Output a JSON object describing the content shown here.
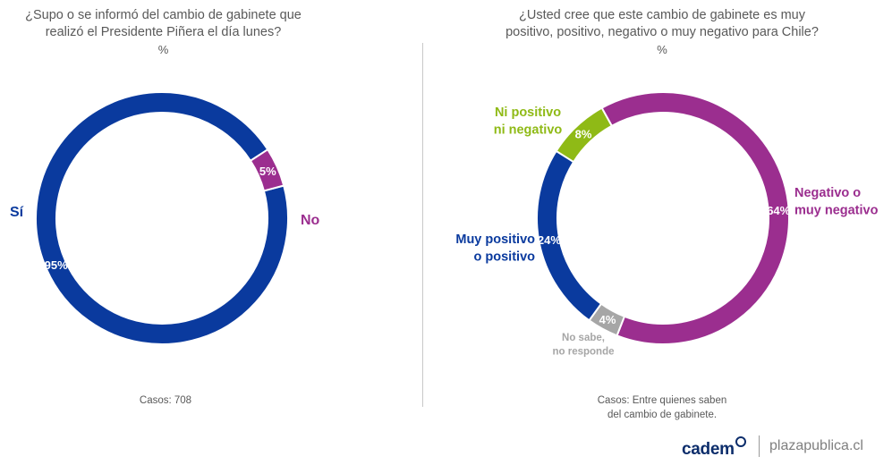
{
  "chart_data": [
    {
      "type": "pie",
      "title_lines": [
        "¿Supo o se informó del cambio de gabinete que",
        "realizó el Presidente Piñera el día lunes?"
      ],
      "unit_label": "%",
      "slices": [
        {
          "name": "Sí",
          "label_lines": [
            "Sí"
          ],
          "value": 95,
          "value_label": "95%",
          "color": "#0a3a9e"
        },
        {
          "name": "No",
          "label_lines": [
            "No"
          ],
          "value": 5,
          "value_label": "5%",
          "color": "#9b2e8f"
        }
      ],
      "cases_lines": [
        "Casos: 708"
      ]
    },
    {
      "type": "pie",
      "title_lines": [
        "¿Usted cree que este cambio de gabinete es muy",
        "positivo, positivo, negativo o muy negativo para Chile?"
      ],
      "unit_label": "%",
      "slices": [
        {
          "name": "Negativo o muy negativo",
          "label_lines": [
            "Negativo o",
            "muy negativo"
          ],
          "value": 64,
          "value_label": "64%",
          "color": "#9b2e8f"
        },
        {
          "name": "No sabe, no responde",
          "label_lines": [
            "No sabe,",
            "no responde"
          ],
          "value": 4,
          "value_label": "4%",
          "color": "#a6a6a6"
        },
        {
          "name": "Muy positivo o positivo",
          "label_lines": [
            "Muy positivo",
            "o positivo"
          ],
          "value": 24,
          "value_label": "24%",
          "color": "#0a3a9e"
        },
        {
          "name": "Ni positivo ni negativo",
          "label_lines": [
            "Ni positivo",
            "ni negativo"
          ],
          "value": 8,
          "value_label": "8%",
          "color": "#8fba16"
        }
      ],
      "cases_lines": [
        "Casos: Entre quienes saben",
        "del cambio de gabinete."
      ]
    }
  ],
  "footer": {
    "brand": "cadem",
    "site": "plazapublica.cl"
  }
}
